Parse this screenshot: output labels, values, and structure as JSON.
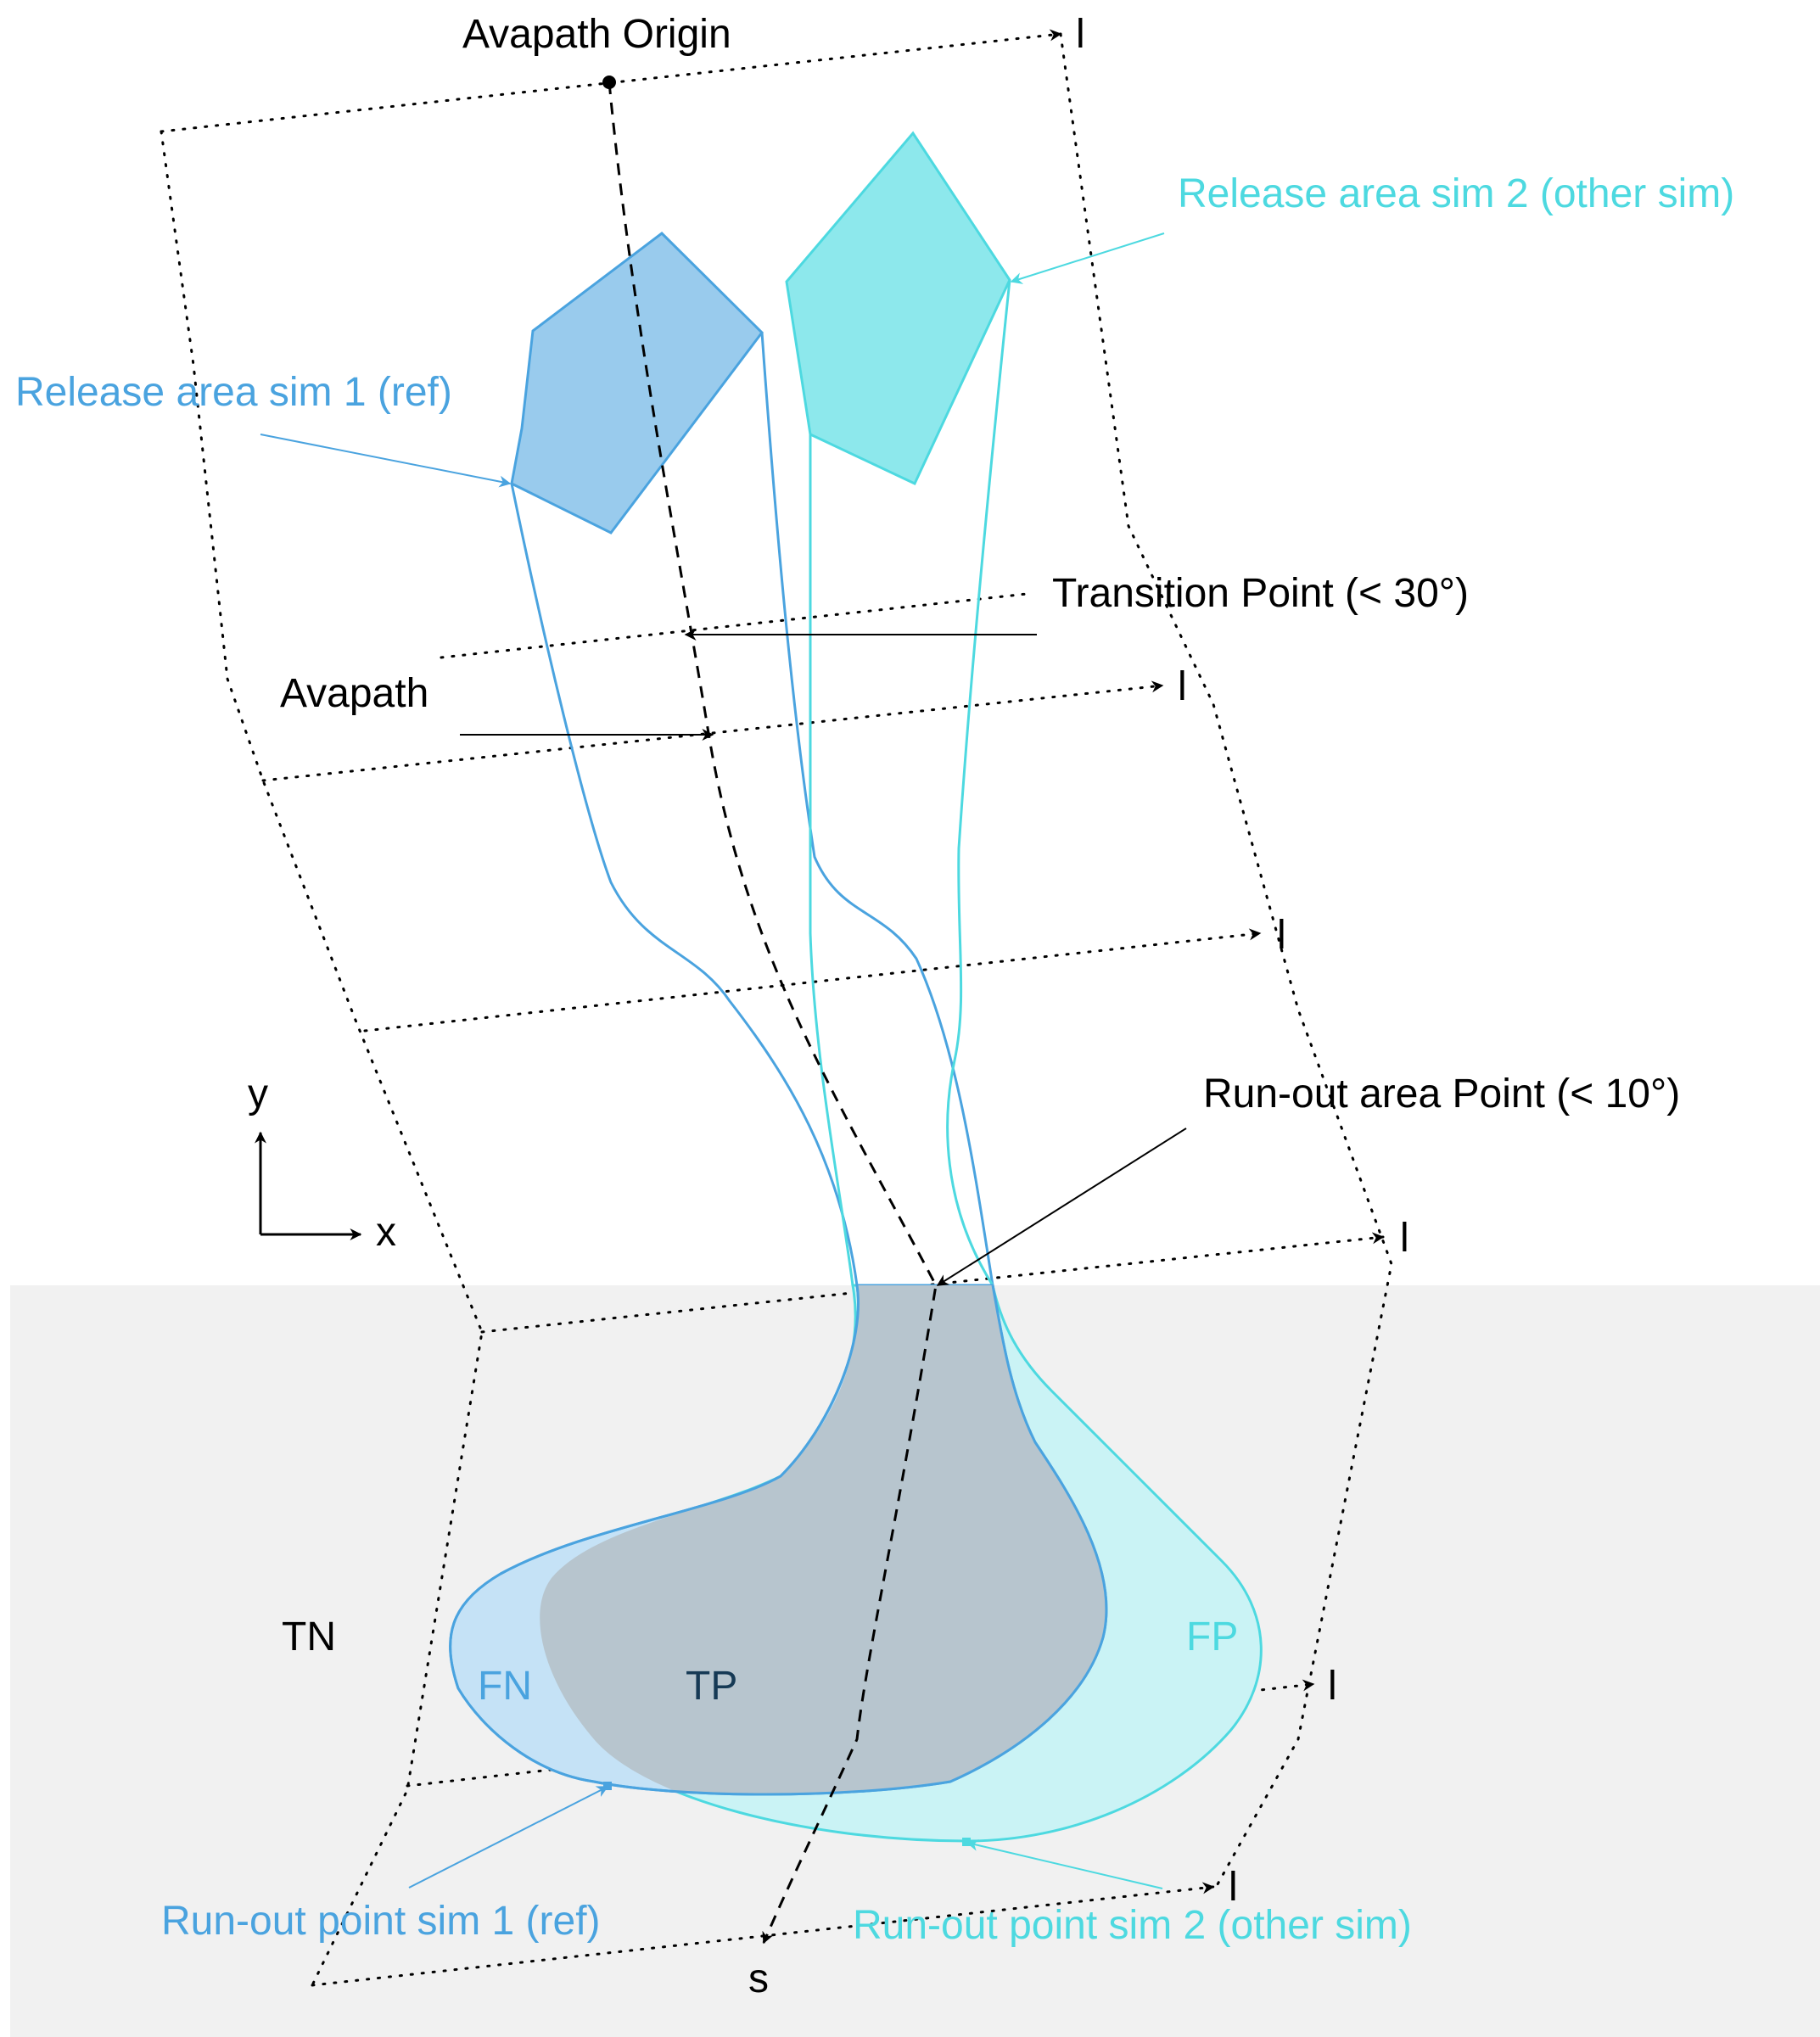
{
  "colors": {
    "ref": "#4aa3df",
    "ref_fill": "#99cbed",
    "other": "#4dd9e0",
    "other_fill": "#8de8ec",
    "tp_fill": "#b7c5ce",
    "fn_fill": "#c5e2f6",
    "fp_fill": "#caf3f5",
    "runout_bg": "#f1f1f1",
    "tp_text": "#163a55",
    "black": "#000000"
  },
  "labels": {
    "avapath_origin": "Avapath Origin",
    "release_sim2": "Release area sim 2 (other sim)",
    "release_sim1": "Release area sim 1 (ref)",
    "transition_point": "Transition Point (< 30°)",
    "avapath": "Avapath",
    "runout_area_point": "Run-out area Point (< 10°)",
    "axis_y": "y",
    "axis_x": "x",
    "tn": "TN",
    "fn": "FN",
    "tp": "TP",
    "fp": "FP",
    "runout_sim1": "Run-out point sim 1 (ref)",
    "runout_sim2": "Run-out point sim 2 (other sim)",
    "s_axis": "s",
    "l_marker": "l"
  }
}
